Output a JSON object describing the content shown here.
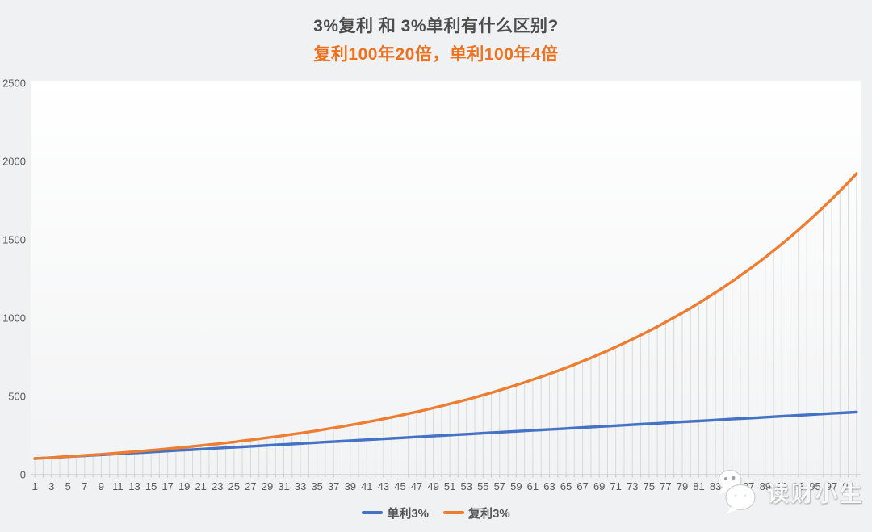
{
  "chart_data": {
    "type": "line",
    "title": "3%复利 和 3%单利有什么区别?",
    "subtitle": "复利100年20倍，单利100年4倍",
    "xlabel": "",
    "ylabel": "",
    "ylim": [
      0,
      2500
    ],
    "yticks": [
      0,
      500,
      1000,
      1500,
      2000,
      2500
    ],
    "x": [
      1,
      2,
      3,
      4,
      5,
      6,
      7,
      8,
      9,
      10,
      11,
      12,
      13,
      14,
      15,
      16,
      17,
      18,
      19,
      20,
      21,
      22,
      23,
      24,
      25,
      26,
      27,
      28,
      29,
      30,
      31,
      32,
      33,
      34,
      35,
      36,
      37,
      38,
      39,
      40,
      41,
      42,
      43,
      44,
      45,
      46,
      47,
      48,
      49,
      50,
      51,
      52,
      53,
      54,
      55,
      56,
      57,
      58,
      59,
      60,
      61,
      62,
      63,
      64,
      65,
      66,
      67,
      68,
      69,
      70,
      71,
      72,
      73,
      74,
      75,
      76,
      77,
      78,
      79,
      80,
      81,
      82,
      83,
      84,
      85,
      86,
      87,
      88,
      89,
      90,
      91,
      92,
      93,
      94,
      95,
      96,
      97,
      98,
      99,
      100
    ],
    "xtick_labels": [
      "1",
      "3",
      "5",
      "7",
      "9",
      "11",
      "13",
      "15",
      "17",
      "19",
      "21",
      "23",
      "25",
      "27",
      "29",
      "31",
      "33",
      "35",
      "37",
      "39",
      "41",
      "43",
      "45",
      "47",
      "49",
      "51",
      "53",
      "55",
      "57",
      "59",
      "61",
      "63",
      "65",
      "67",
      "69",
      "71",
      "73",
      "75",
      "77",
      "79",
      "81",
      "83",
      "85",
      "87",
      "89",
      "91",
      "93",
      "95",
      "97",
      "99"
    ],
    "series": [
      {
        "name": "单利3%",
        "color": "#4472C4",
        "values": [
          103,
          106,
          109,
          112,
          115,
          118,
          121,
          124,
          127,
          130,
          133,
          136,
          139,
          142,
          145,
          148,
          151,
          154,
          157,
          160,
          163,
          166,
          169,
          172,
          175,
          178,
          181,
          184,
          187,
          190,
          193,
          196,
          199,
          202,
          205,
          208,
          211,
          214,
          217,
          220,
          223,
          226,
          229,
          232,
          235,
          238,
          241,
          244,
          247,
          250,
          253,
          256,
          259,
          262,
          265,
          268,
          271,
          274,
          277,
          280,
          283,
          286,
          289,
          292,
          295,
          298,
          301,
          304,
          307,
          310,
          313,
          316,
          319,
          322,
          325,
          328,
          331,
          334,
          337,
          340,
          343,
          346,
          349,
          352,
          355,
          358,
          361,
          364,
          367,
          370,
          373,
          376,
          379,
          382,
          385,
          388,
          391,
          394,
          397,
          400
        ]
      },
      {
        "name": "复利3%",
        "color": "#ED7D31",
        "values": [
          103,
          106,
          109,
          113,
          116,
          119,
          123,
          127,
          130,
          134,
          138,
          143,
          147,
          151,
          156,
          160,
          165,
          170,
          175,
          181,
          186,
          192,
          197,
          203,
          209,
          216,
          222,
          229,
          236,
          243,
          250,
          258,
          265,
          273,
          281,
          290,
          299,
          307,
          317,
          326,
          336,
          346,
          356,
          367,
          378,
          390,
          401,
          413,
          426,
          438,
          452,
          465,
          479,
          493,
          508,
          523,
          539,
          555,
          572,
          589,
          607,
          625,
          644,
          663,
          683,
          703,
          725,
          746,
          769,
          792,
          816,
          840,
          865,
          891,
          918,
          945,
          974,
          1003,
          1033,
          1064,
          1096,
          1129,
          1163,
          1198,
          1234,
          1271,
          1309,
          1348,
          1388,
          1430,
          1473,
          1517,
          1563,
          1610,
          1658,
          1708,
          1759,
          1812,
          1866,
          1922
        ]
      }
    ],
    "legend_position": "bottom",
    "grid": false,
    "drop_lines": true,
    "colors": {
      "drop_line": "#DADADA",
      "axis": "#C6C6C6",
      "tick_label": "#595959",
      "title": "#4D4D4D",
      "subtitle": "#EC7220",
      "page_bg": "#F0F1F2",
      "plot_bg_top": "#FFFFFF",
      "plot_bg_bottom": "#F2F3F4"
    }
  },
  "watermark": {
    "text": "读财小生",
    "icon": "wechat-logo"
  }
}
